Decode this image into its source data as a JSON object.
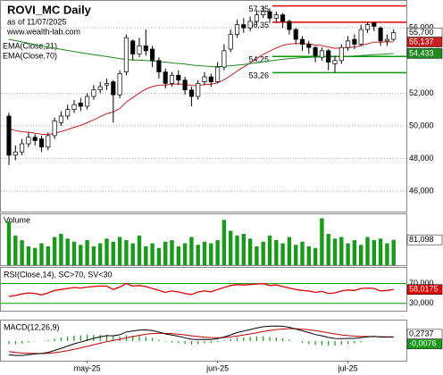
{
  "chart_data": [
    {
      "type": "candlestick",
      "title": "ROVI_MC Daily",
      "subtitle": "as of 11/07/2025",
      "source": "www.wealth-lab.com",
      "open": [
        50.6,
        48.2,
        48.4,
        48.9,
        49.3,
        49.2,
        48.7,
        49.4,
        50.2,
        50.6,
        51.0,
        51.4,
        51.2,
        51.8,
        52.2,
        52.5,
        52.7,
        51.9,
        53.3,
        55.2,
        54.4,
        54.9,
        54.7,
        54.0,
        53.3,
        52.6,
        53.1,
        52.8,
        52.2,
        51.8,
        52.7,
        53.0,
        52.7,
        53.6,
        54.7,
        55.6,
        56.2,
        56.0,
        56.4,
        56.8,
        57.0,
        56.6,
        56.8,
        56.4,
        55.9,
        55.3,
        55.0,
        54.8,
        54.2,
        54.6,
        53.8,
        54.0,
        54.8,
        55.3,
        55.0,
        55.9,
        56.3,
        56.0,
        55.2,
        55.3
      ],
      "high": [
        50.8,
        48.8,
        49.2,
        49.6,
        49.5,
        49.4,
        49.6,
        50.5,
        50.9,
        51.3,
        51.6,
        51.7,
        52.0,
        52.5,
        52.7,
        52.9,
        52.8,
        53.4,
        55.6,
        55.3,
        55.4,
        55.9,
        54.9,
        54.2,
        53.5,
        53.3,
        53.4,
        53.0,
        52.4,
        52.8,
        53.3,
        53.2,
        53.9,
        55.0,
        55.9,
        56.5,
        56.6,
        56.7,
        57.1,
        57.35,
        57.2,
        57.0,
        56.9,
        56.5,
        56.0,
        55.5,
        55.2,
        54.9,
        54.8,
        54.7,
        54.3,
        55.0,
        55.5,
        55.6,
        56.2,
        56.35,
        56.35,
        56.1,
        55.6,
        55.9
      ],
      "low": [
        47.6,
        47.9,
        48.2,
        48.7,
        48.8,
        48.4,
        48.5,
        49.2,
        50.0,
        50.4,
        50.8,
        50.9,
        51.0,
        51.6,
        52.0,
        52.2,
        50.2,
        51.7,
        53.1,
        54.0,
        54.2,
        54.3,
        53.6,
        52.9,
        52.3,
        52.4,
        52.5,
        51.9,
        51.2,
        51.6,
        52.5,
        52.4,
        52.6,
        53.4,
        54.5,
        55.4,
        55.7,
        55.8,
        56.2,
        56.6,
        56.3,
        56.3,
        56.0,
        55.6,
        55.0,
        54.6,
        54.4,
        53.9,
        54.0,
        53.4,
        53.26,
        53.8,
        54.6,
        54.7,
        54.9,
        55.7,
        55.8,
        54.9,
        54.9,
        55.2
      ],
      "close": [
        48.2,
        48.4,
        48.9,
        49.3,
        49.1,
        48.7,
        49.4,
        50.3,
        50.6,
        51.0,
        51.3,
        51.2,
        51.8,
        52.2,
        52.4,
        52.6,
        51.9,
        53.2,
        55.4,
        54.4,
        54.9,
        54.6,
        54.0,
        53.3,
        52.6,
        53.1,
        52.8,
        52.2,
        51.8,
        52.6,
        53.0,
        52.7,
        53.6,
        54.6,
        55.6,
        56.2,
        56.0,
        56.4,
        56.8,
        57.0,
        56.6,
        56.8,
        56.4,
        55.9,
        55.3,
        55.0,
        54.8,
        54.3,
        54.6,
        53.9,
        54.0,
        54.8,
        55.2,
        55.0,
        55.9,
        56.2,
        56.1,
        55.2,
        55.3,
        55.7
      ],
      "close_label": "55,700",
      "series": [
        {
          "name": "EMA(Close,21)",
          "color": "#cc1f1f",
          "last_label": "55,137",
          "values": [
            49.84,
            49.71,
            49.64,
            49.61,
            49.56,
            49.48,
            49.47,
            49.55,
            49.65,
            49.77,
            49.91,
            50.03,
            50.19,
            50.37,
            50.56,
            50.74,
            50.85,
            51.06,
            51.46,
            51.73,
            52.01,
            52.25,
            52.41,
            52.49,
            52.5,
            52.55,
            52.57,
            52.54,
            52.47,
            52.48,
            52.53,
            52.55,
            52.64,
            52.82,
            53.07,
            53.36,
            53.6,
            53.85,
            54.12,
            54.38,
            54.58,
            54.78,
            54.93,
            55.02,
            55.04,
            55.04,
            55.02,
            54.95,
            54.92,
            54.83,
            54.75,
            54.76,
            54.8,
            54.82,
            54.91,
            55.03,
            55.13,
            55.13,
            55.15,
            55.137
          ]
        },
        {
          "name": "EMA(Close,70)",
          "color": "#1f8a1f",
          "last_label": "54,433",
          "values": [
            55.3,
            55.22,
            55.14,
            55.06,
            54.98,
            54.9,
            54.83,
            54.76,
            54.69,
            54.62,
            54.55,
            54.48,
            54.42,
            54.36,
            54.3,
            54.24,
            54.18,
            54.12,
            54.06,
            54.04,
            54.02,
            54.0,
            53.97,
            53.94,
            53.9,
            53.86,
            53.82,
            53.78,
            53.73,
            53.69,
            53.66,
            53.63,
            53.63,
            53.65,
            53.68,
            53.72,
            53.76,
            53.81,
            53.86,
            53.92,
            53.98,
            54.03,
            54.08,
            54.12,
            54.15,
            54.18,
            54.2,
            54.21,
            54.22,
            54.23,
            54.23,
            54.24,
            54.26,
            54.28,
            54.3,
            54.33,
            54.36,
            54.38,
            54.4,
            54.433
          ]
        }
      ],
      "levels": [
        {
          "value": 57.35,
          "label": "57,35",
          "color": "#e00000"
        },
        {
          "value": 56.35,
          "label": "56,35",
          "color": "#e00000"
        },
        {
          "value": 54.25,
          "label": "54,25",
          "color": "#009900"
        },
        {
          "value": 53.26,
          "label": "53,26",
          "color": "#009900"
        }
      ],
      "ylim": [
        44.8,
        57.6
      ],
      "yticks": [
        {
          "value": 56,
          "label": "56,000"
        },
        {
          "value": 52,
          "label": "52,000"
        },
        {
          "value": 50,
          "label": "50,000"
        },
        {
          "value": 48,
          "label": "48,000"
        },
        {
          "value": 46,
          "label": "46,000"
        }
      ],
      "grid": true
    },
    {
      "type": "bar",
      "title": "Volume",
      "color": "#1a9a1a",
      "last_label": "81,098",
      "values": [
        140000,
        95000,
        80000,
        60000,
        55000,
        70000,
        60000,
        90000,
        100000,
        85000,
        75000,
        65000,
        80000,
        60000,
        70000,
        85000,
        75000,
        90000,
        80000,
        70000,
        95000,
        60000,
        70000,
        55000,
        75000,
        80000,
        60000,
        70000,
        90000,
        65000,
        75000,
        70000,
        80000,
        145000,
        110000,
        95000,
        100000,
        85000,
        60000,
        75000,
        95000,
        80000,
        70000,
        90000,
        65000,
        75000,
        60000,
        55000,
        150000,
        100000,
        85000,
        90000,
        70000,
        80000,
        65000,
        90000,
        80000,
        85000,
        70000,
        81098
      ],
      "ylim": [
        0,
        160000
      ]
    },
    {
      "type": "line",
      "title": "RSI(Close,14), SC>70, SV<30",
      "color": "#e00000",
      "last_label": "58,0175",
      "values": [
        44,
        46,
        49,
        51,
        50,
        47,
        51,
        56,
        58,
        60,
        62,
        61,
        63,
        64,
        65,
        65,
        58,
        63,
        70,
        65,
        66,
        64,
        60,
        56,
        52,
        55,
        53,
        50,
        48,
        53,
        55,
        53,
        58,
        62,
        66,
        68,
        67,
        68,
        69,
        70,
        66,
        67,
        64,
        61,
        58,
        56,
        55,
        52,
        54,
        50,
        51,
        55,
        57,
        56,
        60,
        61,
        60,
        55,
        56,
        58.0175
      ],
      "ylim": [
        15,
        100
      ],
      "yticks": [
        {
          "value": 70,
          "label": "70,000"
        },
        {
          "value": 30,
          "label": "30,000"
        }
      ],
      "grid": true,
      "grid_color": "#009900"
    },
    {
      "type": "macd",
      "title": "MACD(12,26,9)",
      "macd": [
        -0.9,
        -0.95,
        -0.95,
        -0.9,
        -0.85,
        -0.82,
        -0.75,
        -0.62,
        -0.48,
        -0.33,
        -0.18,
        -0.07,
        0.06,
        0.18,
        0.28,
        0.36,
        0.35,
        0.42,
        0.6,
        0.66,
        0.72,
        0.74,
        0.7,
        0.6,
        0.47,
        0.4,
        0.32,
        0.22,
        0.12,
        0.1,
        0.11,
        0.1,
        0.16,
        0.27,
        0.41,
        0.56,
        0.66,
        0.76,
        0.86,
        0.95,
        0.98,
        1.0,
        0.98,
        0.91,
        0.8,
        0.68,
        0.56,
        0.43,
        0.35,
        0.24,
        0.17,
        0.16,
        0.18,
        0.18,
        0.23,
        0.28,
        0.31,
        0.27,
        0.26,
        0.2737
      ],
      "signal": [
        -0.7,
        -0.75,
        -0.79,
        -0.81,
        -0.82,
        -0.82,
        -0.81,
        -0.77,
        -0.71,
        -0.64,
        -0.55,
        -0.45,
        -0.35,
        -0.24,
        -0.14,
        -0.04,
        0.04,
        0.12,
        0.21,
        0.3,
        0.38,
        0.45,
        0.5,
        0.52,
        0.51,
        0.49,
        0.46,
        0.41,
        0.35,
        0.3,
        0.26,
        0.23,
        0.22,
        0.23,
        0.27,
        0.33,
        0.4,
        0.47,
        0.55,
        0.63,
        0.7,
        0.76,
        0.8,
        0.82,
        0.82,
        0.79,
        0.75,
        0.69,
        0.62,
        0.55,
        0.47,
        0.41,
        0.36,
        0.33,
        0.31,
        0.3,
        0.3,
        0.29,
        0.28,
        0.2813
      ],
      "histogram": [
        -0.2,
        -0.2,
        -0.16,
        -0.09,
        -0.03,
        0.0,
        0.06,
        0.15,
        0.23,
        0.31,
        0.37,
        0.38,
        0.41,
        0.42,
        0.42,
        0.4,
        0.31,
        0.3,
        0.39,
        0.36,
        0.34,
        0.29,
        0.2,
        0.08,
        -0.04,
        -0.09,
        -0.14,
        -0.19,
        -0.23,
        -0.2,
        -0.15,
        -0.13,
        -0.06,
        0.04,
        0.14,
        0.23,
        0.26,
        0.29,
        0.31,
        0.32,
        0.28,
        0.24,
        0.18,
        0.09,
        -0.02,
        -0.11,
        -0.19,
        -0.26,
        -0.27,
        -0.31,
        -0.3,
        -0.25,
        -0.18,
        -0.15,
        -0.08,
        -0.02,
        0.01,
        -0.02,
        -0.02,
        -0.0076
      ],
      "macd_color": "#000000",
      "signal_color": "#c00000",
      "histogram_color": "#1a9a1a",
      "macd_label": "0,2737",
      "histogram_label": "-0,0076",
      "ylim": [
        -1.3,
        1.3
      ],
      "categories": [
        null,
        null,
        null,
        null,
        null,
        null,
        null,
        null,
        null,
        null,
        null,
        null,
        "may-25",
        null,
        null,
        null,
        null,
        null,
        null,
        null,
        null,
        null,
        null,
        null,
        null,
        null,
        null,
        null,
        null,
        null,
        null,
        null,
        "jun-25",
        null,
        null,
        null,
        null,
        null,
        null,
        null,
        null,
        null,
        null,
        null,
        null,
        null,
        null,
        null,
        null,
        null,
        null,
        null,
        "jul-25",
        null,
        null,
        null,
        null,
        null,
        null,
        null
      ]
    }
  ]
}
